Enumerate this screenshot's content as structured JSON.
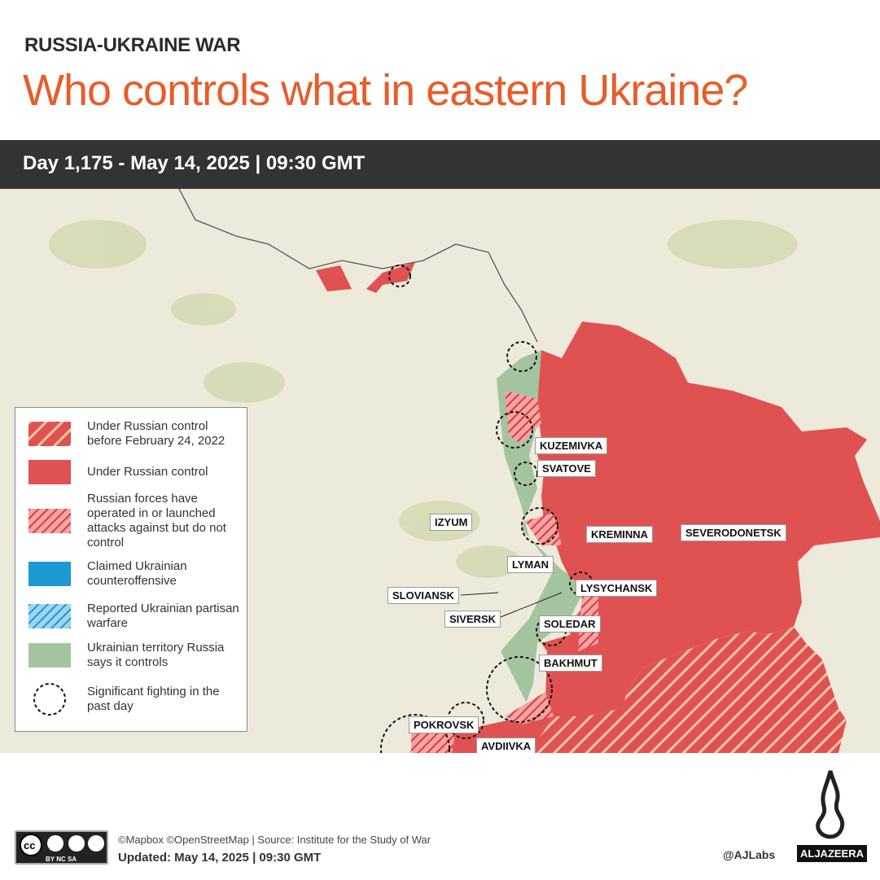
{
  "header": {
    "kicker": "RUSSIA-UKRAINE WAR",
    "title": "Who controls what in eastern Ukraine?",
    "date_line": "Day 1,175 - May 14, 2025  |  09:30 GMT"
  },
  "colors": {
    "russian_control": "#e05252",
    "pre2022_hatch": "#f0c9a0",
    "ukrainian_counteroffensive": "#1a9ad1",
    "russia_claims": "#a4c4a0",
    "title": "#e85c2a",
    "band": "#333333"
  },
  "map": {
    "labels": [
      "KUZEMIVKA",
      "SVATOVE",
      "IZYUM",
      "KREMINNA",
      "SEVERODONETSK",
      "LYMAN",
      "LYSYCHANSK",
      "SLOVIANSK",
      "SIVERSK",
      "SOLEDAR",
      "BAKHMUT",
      "POKROVSK",
      "AVDIIVKA"
    ]
  },
  "legend": {
    "items": [
      {
        "icon": "hatch-pre2022",
        "label": "Under Russian control before February 24, 2022"
      },
      {
        "icon": "solid-red",
        "label": "Under Russian control"
      },
      {
        "icon": "hatch-red",
        "label": "Russian forces have operated in or launched attacks against but do not control"
      },
      {
        "icon": "solid-blue",
        "label": "Claimed Ukrainian counteroffensive"
      },
      {
        "icon": "hatch-blue",
        "label": "Reported Ukrainian partisan warfare"
      },
      {
        "icon": "solid-green",
        "label": "Ukrainian territory Russia says it controls"
      },
      {
        "icon": "dashed-circle",
        "label": "Significant fighting in the past day"
      }
    ]
  },
  "footer": {
    "source": "©Mapbox ©OpenStreetMap | Source: Institute for the Study of War",
    "updated": "Updated: May 14, 2025  |  09:30 GMT",
    "handle": "@AJLabs",
    "brand": "ALJAZEERA",
    "license": "CC BY NC SA"
  }
}
